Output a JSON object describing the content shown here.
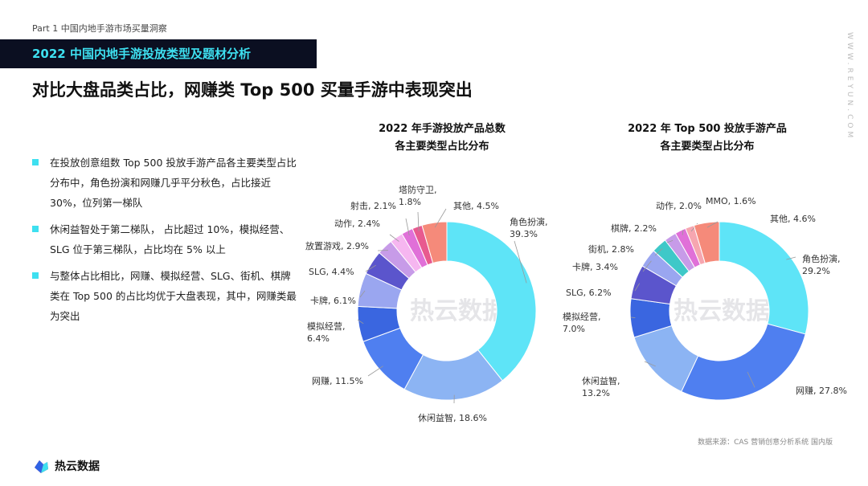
{
  "header": {
    "part": "Part 1  中国内地手游市场买量洞察",
    "title": "2022 中国内地手游投放类型及题材分析",
    "headline": "对比大盘品类占比，网赚类 Top 500 买量手游中表现突出",
    "side_watermark": "WWW.REYUN.COM"
  },
  "bullets": [
    "在投放创意组数 Top 500 投放手游产品各主要类型占比分布中，角色扮演和网赚几乎平分秋色，占比接近 30%，位列第一梯队",
    "休闲益智处于第二梯队， 占比超过 10%，模拟经营、SLG 位于第三梯队，占比均在 5% 以上",
    "与整体占比相比，网赚、模拟经营、SLG、街机、棋牌类在 Top 500 的占比均优于大盘表现，其中，网赚类最为突出"
  ],
  "chart_data": [
    {
      "type": "pie",
      "title_lines": [
        "2022 年手游投放产品总数",
        "各主要类型占比分布"
      ],
      "slices": [
        {
          "name": "角色扮演",
          "value": 39.3,
          "color": "#5ee4f7"
        },
        {
          "name": "休闲益智",
          "value": 18.6,
          "color": "#8cb4f3"
        },
        {
          "name": "网赚",
          "value": 11.5,
          "color": "#4f7ff0"
        },
        {
          "name": "模拟经营",
          "value": 6.4,
          "color": "#3a66e0"
        },
        {
          "name": "卡牌",
          "value": 6.1,
          "color": "#9aa6f0"
        },
        {
          "name": "SLG",
          "value": 4.4,
          "color": "#5b55cc"
        },
        {
          "name": "放置游戏",
          "value": 2.9,
          "color": "#c79be8"
        },
        {
          "name": "动作",
          "value": 2.4,
          "color": "#f6b6f0"
        },
        {
          "name": "射击",
          "value": 2.1,
          "color": "#e070d8"
        },
        {
          "name": "塔防守卫",
          "value": 1.8,
          "color": "#e85a8f"
        },
        {
          "name": "其他",
          "value": 4.5,
          "color": "#f58a7a"
        }
      ],
      "labels": [
        {
          "lines": [
            "角色扮演,",
            "39.3%"
          ]
        },
        {
          "lines": [
            "休闲益智, 18.6%"
          ]
        },
        {
          "lines": [
            "网赚, 11.5%"
          ]
        },
        {
          "lines": [
            "模拟经营,",
            "6.4%"
          ]
        },
        {
          "lines": [
            "卡牌, 6.1%"
          ]
        },
        {
          "lines": [
            "SLG, 4.4%"
          ]
        },
        {
          "lines": [
            "放置游戏, 2.9%"
          ]
        },
        {
          "lines": [
            "动作, 2.4%"
          ]
        },
        {
          "lines": [
            "射击, 2.1%"
          ]
        },
        {
          "lines": [
            "塔防守卫,",
            "1.8%"
          ]
        },
        {
          "lines": [
            "其他, 4.5%"
          ]
        }
      ]
    },
    {
      "type": "pie",
      "title_lines": [
        "2022 年 Top 500 投放手游产品",
        "各主要类型占比分布"
      ],
      "slices": [
        {
          "name": "角色扮演",
          "value": 29.2,
          "color": "#5ee4f7"
        },
        {
          "name": "网赚",
          "value": 27.8,
          "color": "#4f7ff0"
        },
        {
          "name": "休闲益智",
          "value": 13.2,
          "color": "#8cb4f3"
        },
        {
          "name": "模拟经营",
          "value": 7.0,
          "color": "#3a66e0"
        },
        {
          "name": "SLG",
          "value": 6.2,
          "color": "#5b55cc"
        },
        {
          "name": "卡牌",
          "value": 3.4,
          "color": "#9aa6f0"
        },
        {
          "name": "街机",
          "value": 2.8,
          "color": "#3ec8c8"
        },
        {
          "name": "棋牌",
          "value": 2.2,
          "color": "#c79be8"
        },
        {
          "name": "动作",
          "value": 2.0,
          "color": "#e070d8"
        },
        {
          "name": "MMO",
          "value": 1.6,
          "color": "#f6a6b0"
        },
        {
          "name": "其他",
          "value": 4.6,
          "color": "#f58a7a"
        }
      ],
      "labels": [
        {
          "lines": [
            "角色扮演,",
            "29.2%"
          ]
        },
        {
          "lines": [
            "网赚, 27.8%"
          ]
        },
        {
          "lines": [
            "休闲益智,",
            "13.2%"
          ]
        },
        {
          "lines": [
            "模拟经营,",
            "7.0%"
          ]
        },
        {
          "lines": [
            "SLG, 6.2%"
          ]
        },
        {
          "lines": [
            "卡牌, 3.4%"
          ]
        },
        {
          "lines": [
            "街机, 2.8%"
          ]
        },
        {
          "lines": [
            "棋牌, 2.2%"
          ]
        },
        {
          "lines": [
            "动作, 2.0%"
          ]
        },
        {
          "lines": [
            "MMO, 1.6%"
          ]
        },
        {
          "lines": [
            "其他, 4.6%"
          ]
        }
      ]
    }
  ],
  "watermark_text": "热云数据",
  "footer": {
    "brand": "热云数据",
    "source": "数据来源：CAS 营销创意分析系统 国内版"
  }
}
